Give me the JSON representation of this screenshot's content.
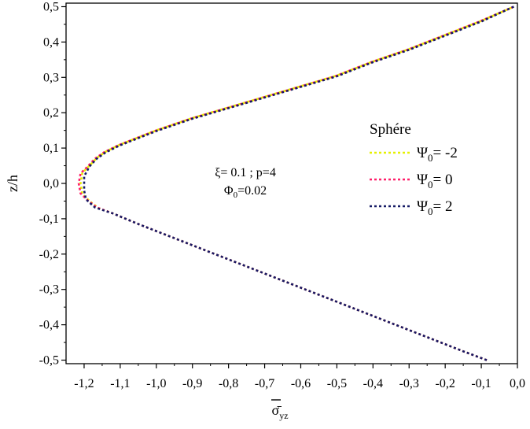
{
  "chart_data": {
    "type": "line",
    "title": "",
    "xlabel": "σ̄",
    "xlabel_sub": "yz",
    "ylabel": "z/h",
    "xlim": [
      -1.25,
      0.0
    ],
    "ylim": [
      -0.51,
      0.51
    ],
    "x_ticks": [
      -1.2,
      -1.1,
      -1.0,
      -0.9,
      -0.8,
      -0.7,
      -0.6,
      -0.5,
      -0.4,
      -0.3,
      -0.2,
      -0.1,
      0.0
    ],
    "x_tick_labels": [
      "-1,2",
      "-1,1",
      "-1,0",
      "-0,9",
      "-0,8",
      "-0,7",
      "-0,6",
      "-0,5",
      "-0,4",
      "-0,3",
      "-0,2",
      "-0,1",
      "0,0"
    ],
    "y_ticks": [
      0.5,
      0.4,
      0.3,
      0.2,
      0.1,
      0.0,
      -0.1,
      -0.2,
      -0.3,
      -0.4,
      -0.5
    ],
    "y_tick_labels": [
      "0,5",
      "0,4",
      "0,3",
      "0,2",
      "0,1",
      "0,0",
      "-0,1",
      "-0,2",
      "-0,3",
      "-0,4",
      "-0,5"
    ],
    "grid": false,
    "legend": {
      "title": "Sphére",
      "position": "right",
      "entries": [
        {
          "symbol": "Ψ",
          "sub": "0",
          "text": "= -2",
          "color": "#e6f000"
        },
        {
          "symbol": "Ψ",
          "sub": "0",
          "text": "= 0",
          "color": "#ff1f6a"
        },
        {
          "symbol": "Ψ",
          "sub": "0",
          "text": "= 2",
          "color": "#151a66"
        }
      ]
    },
    "annotation": {
      "line1": "ξ= 0.1 ; p=4",
      "line2_symbol": "Φ",
      "line2_sub": "0",
      "line2_text": "=0.02"
    },
    "series": [
      {
        "name": "Ψ0= -2",
        "color": "#e6f000",
        "x": [
          -0.085,
          -0.15,
          -0.25,
          -0.35,
          -0.45,
          -0.55,
          -0.65,
          -0.75,
          -0.85,
          -0.95,
          -1.05,
          -1.12,
          -1.16,
          -1.185,
          -1.205,
          -1.21,
          -1.205,
          -1.185,
          -1.165,
          -1.14,
          -1.1,
          -1.05,
          -1.0,
          -0.9,
          -0.8,
          -0.7,
          -0.6,
          -0.5,
          -0.4,
          -0.3,
          -0.2,
          -0.1,
          -0.01
        ],
        "y": [
          -0.5,
          -0.475,
          -0.435,
          -0.395,
          -0.355,
          -0.315,
          -0.275,
          -0.235,
          -0.195,
          -0.155,
          -0.115,
          -0.085,
          -0.07,
          -0.05,
          -0.03,
          0.0,
          0.03,
          0.05,
          0.072,
          0.09,
          0.11,
          0.13,
          0.15,
          0.185,
          0.215,
          0.245,
          0.275,
          0.305,
          0.345,
          0.38,
          0.42,
          0.46,
          0.5
        ]
      },
      {
        "name": "Ψ0= 0",
        "color": "#ff1f6a",
        "x": [
          -0.085,
          -0.15,
          -0.25,
          -0.35,
          -0.45,
          -0.55,
          -0.65,
          -0.75,
          -0.85,
          -0.95,
          -1.05,
          -1.12,
          -1.165,
          -1.19,
          -1.21,
          -1.215,
          -1.21,
          -1.19,
          -1.17,
          -1.145,
          -1.105,
          -1.055,
          -1.005,
          -0.905,
          -0.805,
          -0.705,
          -0.605,
          -0.505,
          -0.405,
          -0.305,
          -0.205,
          -0.105,
          -0.01
        ],
        "y": [
          -0.5,
          -0.475,
          -0.435,
          -0.395,
          -0.355,
          -0.315,
          -0.275,
          -0.235,
          -0.195,
          -0.155,
          -0.115,
          -0.085,
          -0.068,
          -0.048,
          -0.028,
          0.0,
          0.028,
          0.048,
          0.07,
          0.088,
          0.108,
          0.128,
          0.148,
          0.183,
          0.213,
          0.243,
          0.273,
          0.303,
          0.343,
          0.378,
          0.418,
          0.458,
          0.5
        ]
      },
      {
        "name": "Ψ0= 2",
        "color": "#151a66",
        "x": [
          -0.085,
          -0.15,
          -0.25,
          -0.35,
          -0.45,
          -0.55,
          -0.65,
          -0.75,
          -0.85,
          -0.95,
          -1.05,
          -1.12,
          -1.17,
          -1.195,
          -1.2,
          -1.2,
          -1.2,
          -1.185,
          -1.165,
          -1.14,
          -1.1,
          -1.05,
          -1.0,
          -0.9,
          -0.8,
          -0.7,
          -0.6,
          -0.5,
          -0.4,
          -0.3,
          -0.2,
          -0.1,
          -0.01
        ],
        "y": [
          -0.5,
          -0.475,
          -0.435,
          -0.395,
          -0.355,
          -0.315,
          -0.275,
          -0.235,
          -0.195,
          -0.155,
          -0.115,
          -0.085,
          -0.068,
          -0.045,
          -0.02,
          0.0,
          0.02,
          0.048,
          0.07,
          0.088,
          0.108,
          0.128,
          0.148,
          0.183,
          0.213,
          0.243,
          0.273,
          0.303,
          0.343,
          0.378,
          0.418,
          0.458,
          0.5
        ]
      }
    ]
  }
}
